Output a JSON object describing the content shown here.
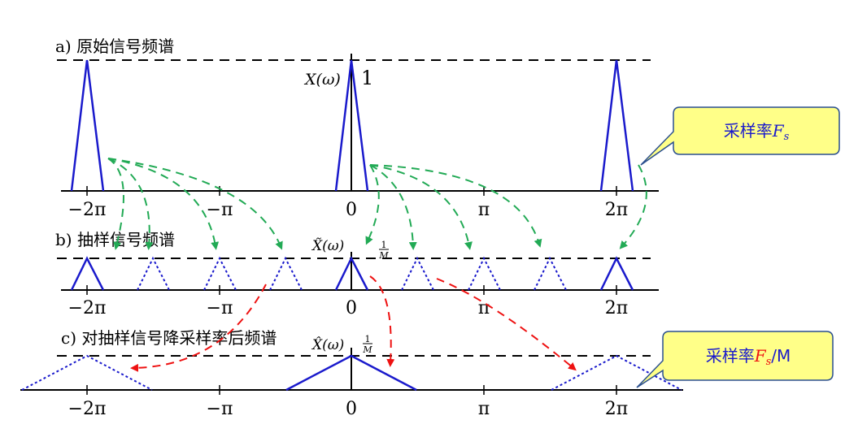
{
  "panels": {
    "a": {
      "title": "a) 原始信号频谱",
      "func_label": "X(ω)",
      "peak_label": "1"
    },
    "b": {
      "title": "b) 抽样信号频谱",
      "func_label": "X̃(ω)",
      "peak_num": "1",
      "peak_den": "M"
    },
    "c": {
      "title": "c) 对抽样信号降采样率后频谱",
      "func_label": "X̂(ω)",
      "peak_num": "1",
      "peak_den": "M"
    }
  },
  "axis_ticks": [
    "−2π",
    "−π",
    "0",
    "π",
    "2π"
  ],
  "callouts": {
    "top": {
      "prefix": "采样率",
      "symbol": "F",
      "subscript": "s"
    },
    "bottom": {
      "prefix": "采样率",
      "symbol": "F",
      "subscript": "s",
      "suffix": "/M"
    }
  },
  "colors": {
    "spectrum": "#1a1acc",
    "arrow_green": "#22aa55",
    "arrow_red": "#ee1111",
    "callout_fill": "#ffff88",
    "callout_text": "#1a1acc",
    "callout_red": "#ee1111"
  }
}
